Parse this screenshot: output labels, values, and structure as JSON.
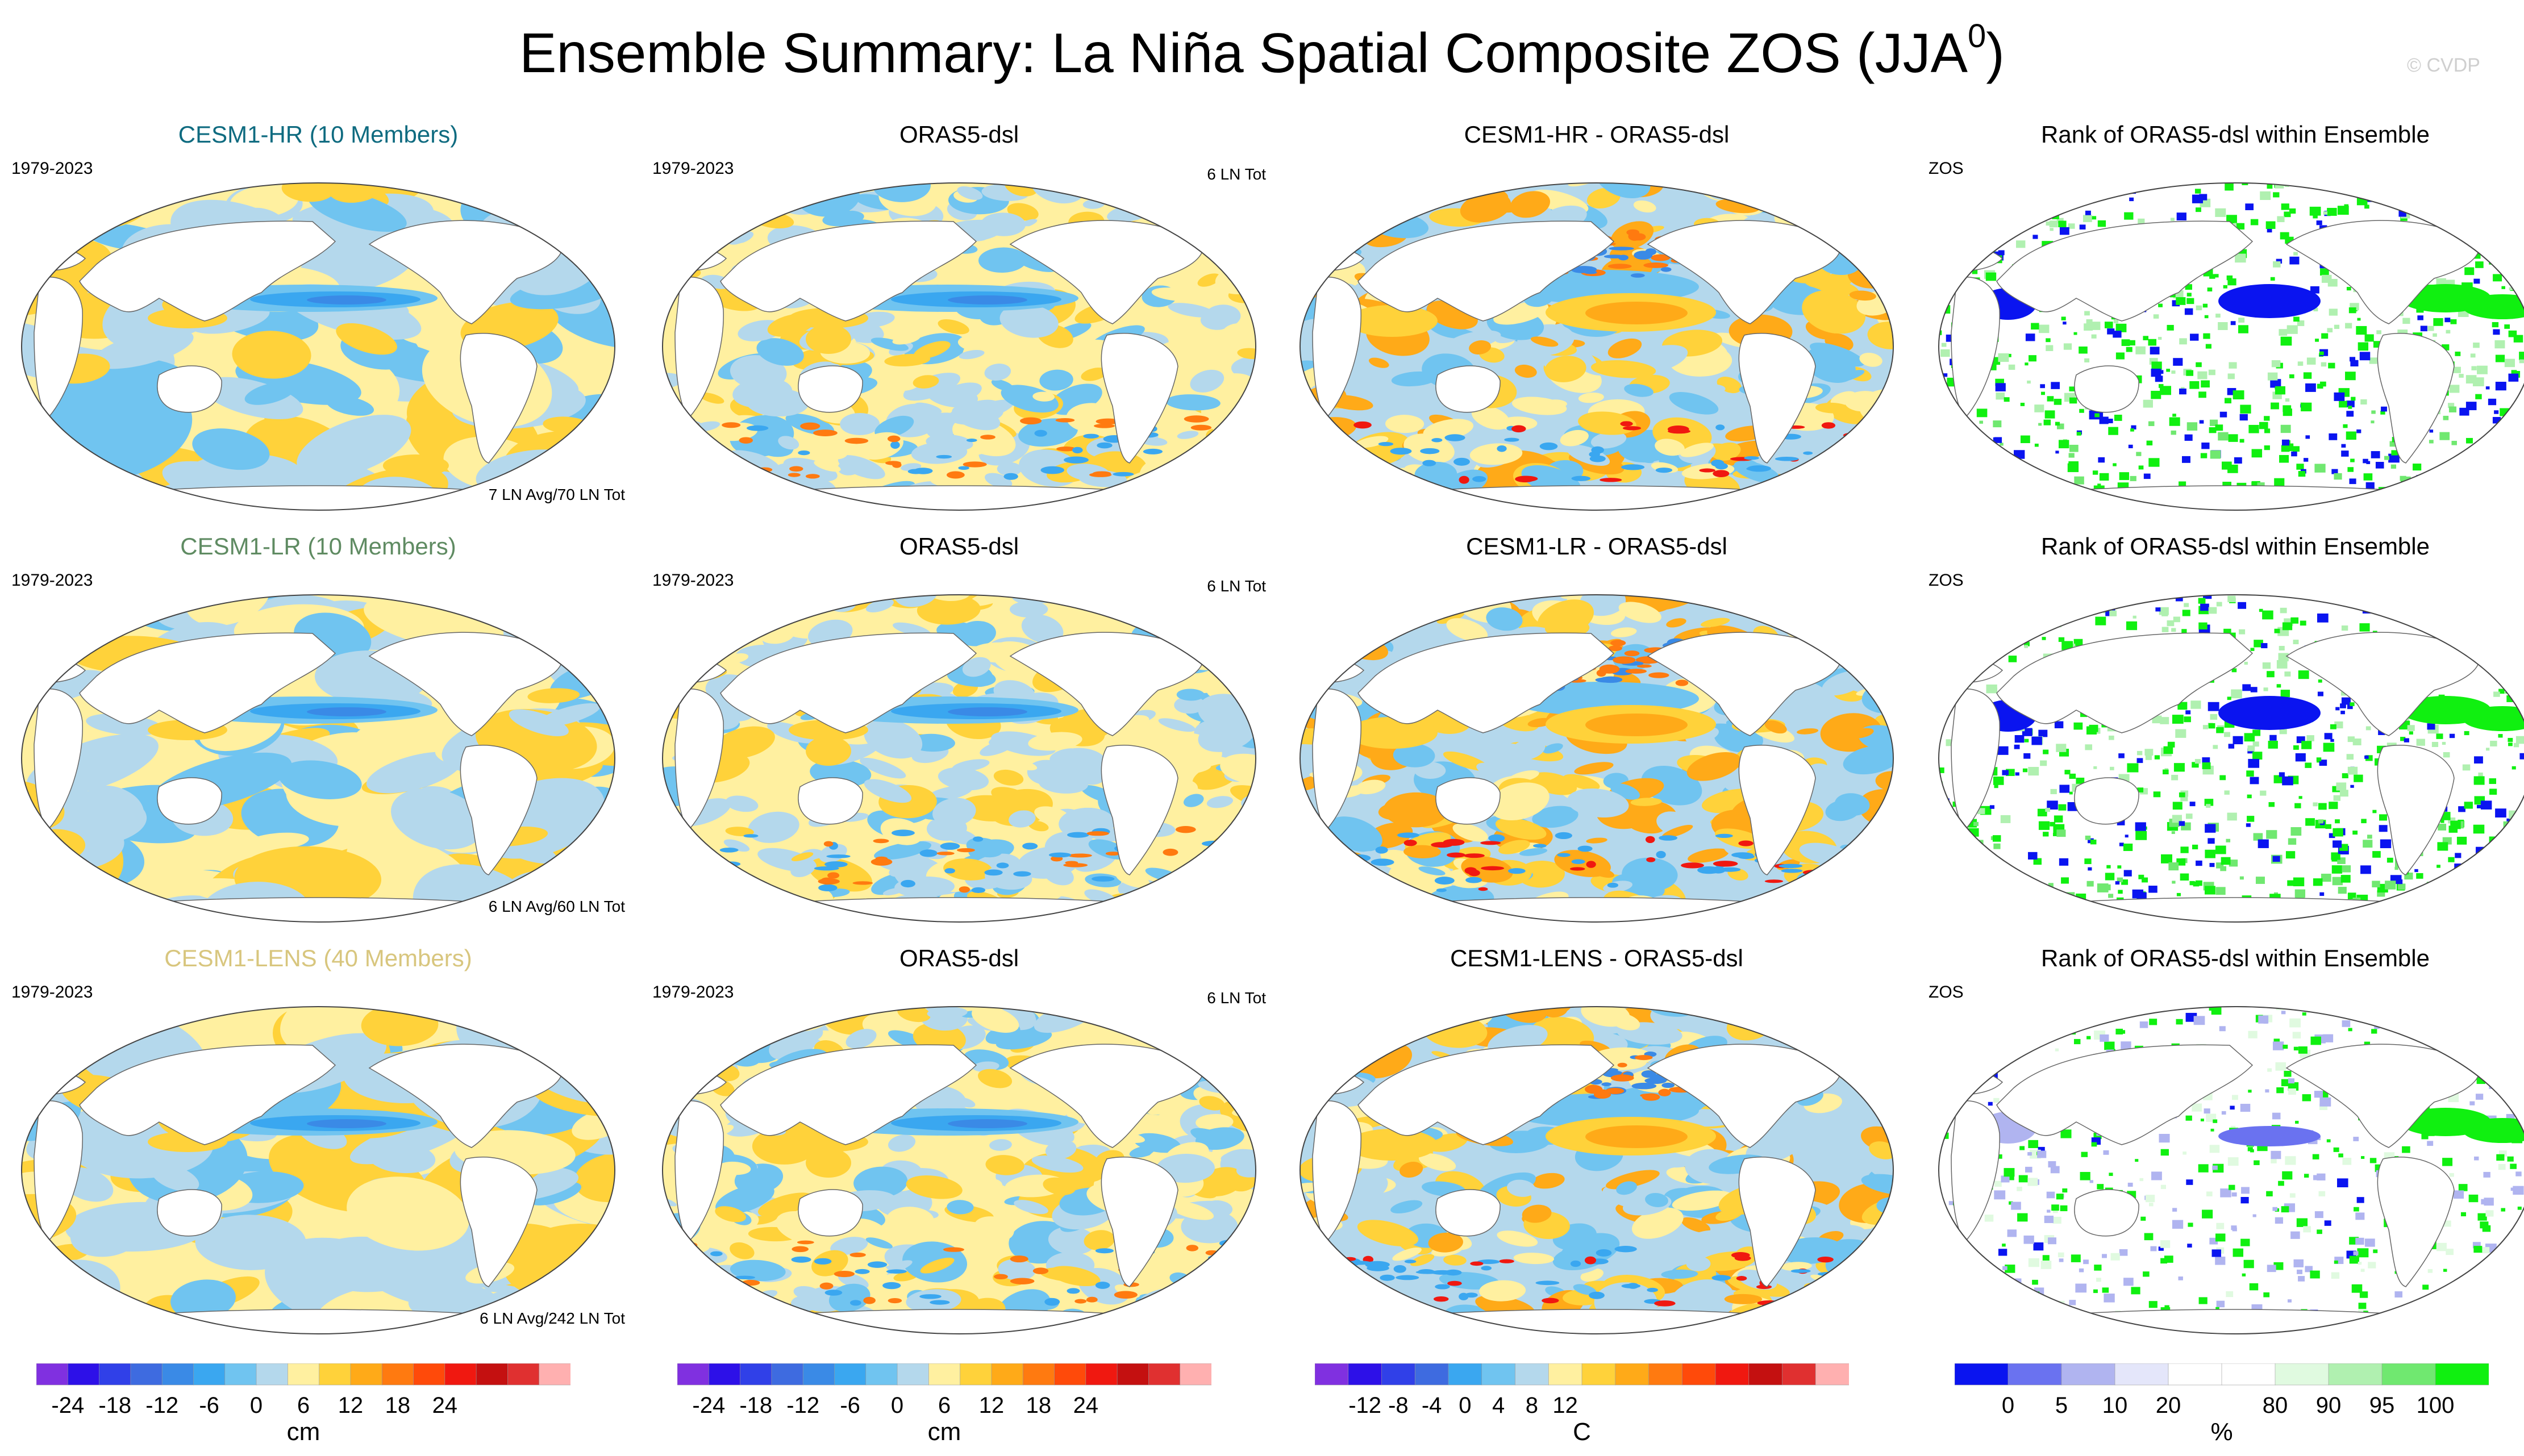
{
  "title_main": "Ensemble Summary: La Niña Spatial Composite ZOS (JJA",
  "title_sup": "0",
  "title_end": ")",
  "copyright": "© CVDP",
  "chart_data": {
    "type": "heatmap",
    "rows": [
      {
        "model": {
          "title": "CESM1-HR (10 Members)",
          "title_color": "#0f6b80",
          "left": "1979-2023",
          "bottom": "7 LN Avg/70 LN Tot"
        },
        "obs": {
          "title": "ORAS5-dsl",
          "left": "1979-2023",
          "right": "6 LN Tot"
        },
        "diff": {
          "title": "CESM1-HR - ORAS5-dsl"
        },
        "rank": {
          "title": "Rank of ORAS5-dsl within Ensemble",
          "left": "ZOS"
        }
      },
      {
        "model": {
          "title": "CESM1-LR (10 Members)",
          "title_color": "#5f8b62",
          "left": "1979-2023",
          "bottom": "6 LN Avg/60 LN Tot"
        },
        "obs": {
          "title": "ORAS5-dsl",
          "left": "1979-2023",
          "right": "6 LN Tot"
        },
        "diff": {
          "title": "CESM1-LR - ORAS5-dsl"
        },
        "rank": {
          "title": "Rank of ORAS5-dsl within Ensemble",
          "left": "ZOS"
        }
      },
      {
        "model": {
          "title": "CESM1-LENS (40 Members)",
          "title_color": "#d8c67e",
          "left": "1979-2023",
          "bottom": "6 LN Avg/242 LN Tot"
        },
        "obs": {
          "title": "ORAS5-dsl",
          "left": "1979-2023",
          "right": "6 LN Tot"
        },
        "diff": {
          "title": "CESM1-LENS - ORAS5-dsl"
        },
        "rank": {
          "title": "Rank of ORAS5-dsl within Ensemble",
          "left": "ZOS"
        }
      }
    ],
    "colorbars": [
      {
        "unit": "cm",
        "ticks": [
          "-24",
          "-18",
          "-12",
          "-6",
          "0",
          "6",
          "12",
          "18",
          "24"
        ],
        "tick_after_box": [
          1,
          4,
          7,
          10,
          13,
          16,
          19,
          22,
          25
        ],
        "colors": [
          "#8030e0",
          "#2d10e8",
          "#3040e8",
          "#3e6be0",
          "#3a8ae6",
          "#3aa7f0",
          "#70c4f0",
          "#b4d8ec",
          "#fff0a0",
          "#ffd23a",
          "#ffaa18",
          "#ff7a10",
          "#ff4a0a",
          "#f01810",
          "#c41010",
          "#e03030",
          "#ffb0b0"
        ]
      },
      {
        "unit": "cm",
        "ticks": [
          "-24",
          "-18",
          "-12",
          "-6",
          "0",
          "6",
          "12",
          "18",
          "24"
        ],
        "tick_after_box": [
          1,
          4,
          7,
          10,
          13,
          16,
          19,
          22,
          25
        ],
        "colors": [
          "#8030e0",
          "#2d10e8",
          "#3040e8",
          "#3e6be0",
          "#3a8ae6",
          "#3aa7f0",
          "#70c4f0",
          "#b4d8ec",
          "#fff0a0",
          "#ffd23a",
          "#ffaa18",
          "#ff7a10",
          "#ff4a0a",
          "#f01810",
          "#c41010",
          "#e03030",
          "#ffb0b0"
        ]
      },
      {
        "unit": "C",
        "ticks": [
          "-12",
          "-8",
          "-4",
          "0",
          "4",
          "8",
          "12"
        ],
        "tick_after_box": [
          2,
          4,
          6,
          8,
          10,
          12,
          14
        ],
        "colors": [
          "#8030e0",
          "#2d10e8",
          "#3040e8",
          "#3e6be0",
          "#3aa7f0",
          "#70c4f0",
          "#b4d8ec",
          "#fff0a0",
          "#ffd23a",
          "#ffaa18",
          "#ff7a10",
          "#ff4a0a",
          "#f01810",
          "#c41010",
          "#e03030",
          "#ffb0b0"
        ]
      },
      {
        "unit": "%",
        "ticks": [
          "0",
          "5",
          "10",
          "20",
          "80",
          "90",
          "95",
          "100"
        ],
        "tick_after_box": [
          1,
          2,
          3,
          4,
          6,
          7,
          8,
          9
        ],
        "colors": [
          "#0a14f0",
          "#6a72f0",
          "#b0b4f0",
          "#e4e6fa",
          "#ffffff",
          "#ffffff",
          "#e0fae0",
          "#b0f0b0",
          "#70e870",
          "#10f010"
        ]
      }
    ]
  }
}
